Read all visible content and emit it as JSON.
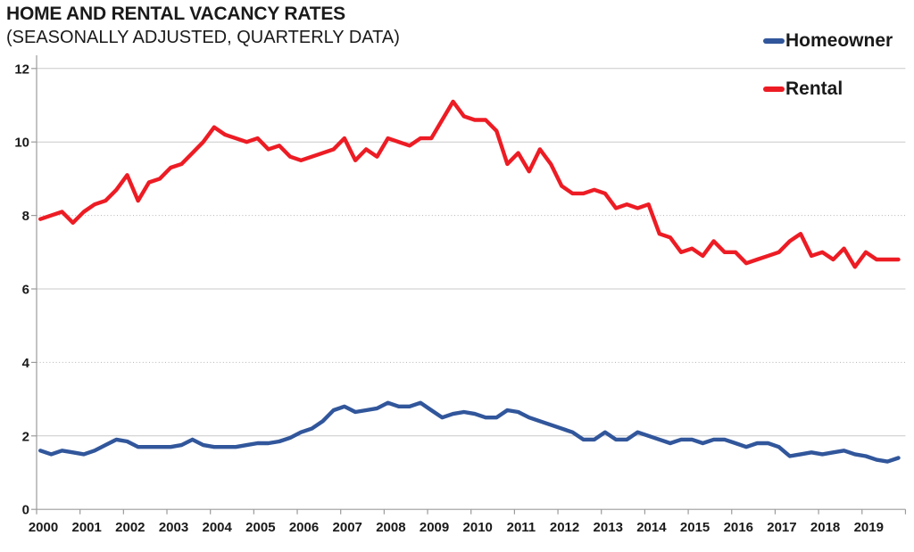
{
  "header": {
    "title": "HOME AND RENTAL VACANCY RATES",
    "subtitle": "(SEASONALLY ADJUSTED, QUARTERLY DATA)"
  },
  "legend": {
    "items": [
      {
        "label": "Homeowner",
        "color": "#31569B"
      },
      {
        "label": "Rental",
        "color": "#ED1C24"
      }
    ],
    "position": "top-right"
  },
  "colors": {
    "homeowner_line": "#31569B",
    "rental_line": "#ED1C24",
    "gridline_solid": "#c9c9c9",
    "gridline_dotted": "#b3b3b3",
    "axis": "#9b9b9b",
    "text": "#1a1a1a",
    "background": "#ffffff"
  },
  "chart_data": {
    "type": "line",
    "title": "HOME AND RENTAL VACANCY RATES",
    "subtitle": "(SEASONALLY ADJUSTED, QUARTERLY DATA)",
    "xlabel": "",
    "ylabel": "",
    "x_categories": [
      "2000",
      "2001",
      "2002",
      "2003",
      "2004",
      "2005",
      "2006",
      "2007",
      "2008",
      "2009",
      "2010",
      "2011",
      "2012",
      "2013",
      "2014",
      "2015",
      "2016",
      "2017",
      "2018",
      "2019"
    ],
    "points_per_year": 4,
    "x_range": [
      "2000 Q1",
      "2019 Q4"
    ],
    "ylim": [
      0,
      12
    ],
    "yticks": [
      0,
      2,
      4,
      6,
      8,
      10,
      12
    ],
    "grid": {
      "horizontal": true,
      "dotted_at": [
        4,
        8
      ],
      "solid_at": [
        2,
        6,
        10,
        12
      ]
    },
    "legend_position": "top-right",
    "series": [
      {
        "name": "Homeowner",
        "color": "#31569B",
        "values": [
          1.6,
          1.5,
          1.6,
          1.55,
          1.5,
          1.6,
          1.75,
          1.9,
          1.85,
          1.7,
          1.7,
          1.7,
          1.7,
          1.75,
          1.9,
          1.75,
          1.7,
          1.7,
          1.7,
          1.75,
          1.8,
          1.8,
          1.85,
          1.95,
          2.1,
          2.2,
          2.4,
          2.7,
          2.8,
          2.65,
          2.7,
          2.75,
          2.9,
          2.8,
          2.8,
          2.9,
          2.7,
          2.5,
          2.6,
          2.65,
          2.6,
          2.5,
          2.5,
          2.7,
          2.65,
          2.5,
          2.4,
          2.3,
          2.2,
          2.1,
          1.9,
          1.9,
          2.1,
          1.9,
          1.9,
          2.1,
          2.0,
          1.9,
          1.8,
          1.9,
          1.9,
          1.8,
          1.9,
          1.9,
          1.8,
          1.7,
          1.8,
          1.8,
          1.7,
          1.45,
          1.5,
          1.55,
          1.5,
          1.55,
          1.6,
          1.5,
          1.45,
          1.35,
          1.3,
          1.4
        ]
      },
      {
        "name": "Rental",
        "color": "#ED1C24",
        "values": [
          7.9,
          8.0,
          8.1,
          7.8,
          8.1,
          8.3,
          8.4,
          8.7,
          9.1,
          8.4,
          8.9,
          9.0,
          9.3,
          9.4,
          9.7,
          10.0,
          10.4,
          10.2,
          10.1,
          10.0,
          10.1,
          9.8,
          9.9,
          9.6,
          9.5,
          9.6,
          9.7,
          9.8,
          10.1,
          9.5,
          9.8,
          9.6,
          10.1,
          10.0,
          9.9,
          10.1,
          10.1,
          10.6,
          11.1,
          10.7,
          10.6,
          10.6,
          10.3,
          9.4,
          9.7,
          9.2,
          9.8,
          9.4,
          8.8,
          8.6,
          8.6,
          8.7,
          8.6,
          8.2,
          8.3,
          8.2,
          8.3,
          7.5,
          7.4,
          7.0,
          7.1,
          6.9,
          7.3,
          7.0,
          7.0,
          6.7,
          6.8,
          6.9,
          7.0,
          7.3,
          7.5,
          6.9,
          7.0,
          6.8,
          7.1,
          6.6,
          7.0,
          6.8,
          6.8,
          6.8
        ]
      }
    ]
  }
}
